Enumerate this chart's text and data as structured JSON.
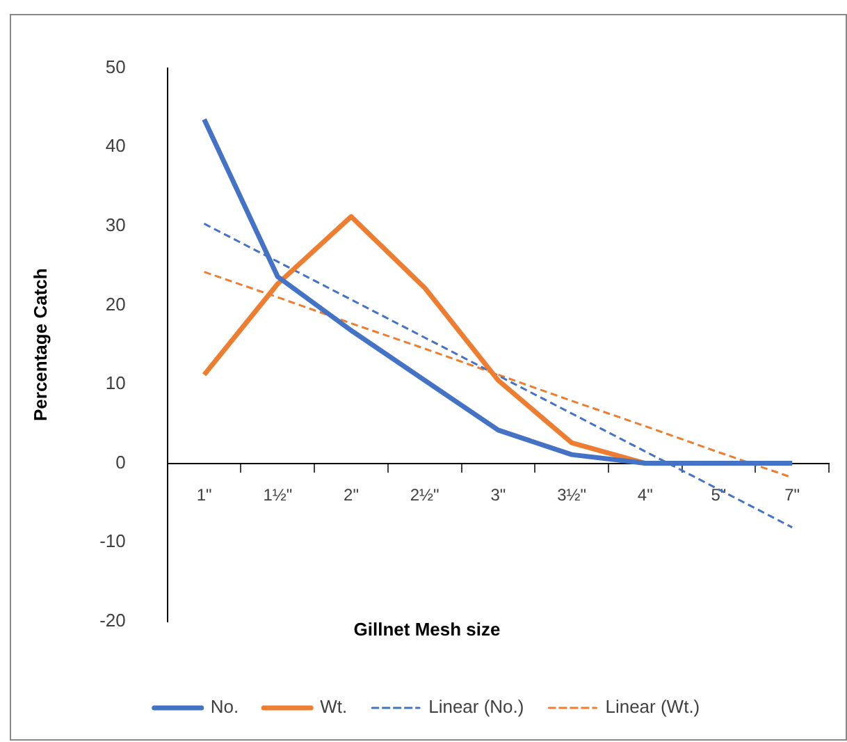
{
  "chart_data": {
    "type": "line",
    "xlabel": "Gillnet Mesh size",
    "ylabel": "Percentage Catch",
    "categories": [
      "1\"",
      "1½\"",
      "2\"",
      "2½\"",
      "3\"",
      "3½\"",
      "4\"",
      "5\"",
      "7\""
    ],
    "series": [
      {
        "name": "No.",
        "color": "#4472c4",
        "values": [
          43.5,
          23.6,
          16.8,
          10.5,
          4.2,
          1.1,
          0,
          0,
          0
        ]
      },
      {
        "name": "Wt.",
        "color": "#ed7d31",
        "values": [
          11.2,
          22.7,
          31.2,
          22.2,
          10.5,
          2.6,
          0,
          0,
          0
        ]
      },
      {
        "name": "Linear (No.)",
        "color": "#4472c4",
        "line_style": "dashed",
        "values": [
          30.3,
          25.5,
          20.7,
          15.9,
          11.1,
          6.3,
          1.5,
          -3.3,
          -8.1
        ]
      },
      {
        "name": "Linear (Wt.)",
        "color": "#ed7d31",
        "line_style": "dashed",
        "values": [
          24.2,
          21.0,
          17.7,
          14.5,
          11.2,
          7.9,
          4.7,
          1.4,
          -1.8
        ]
      }
    ],
    "ylim": [
      -20,
      50
    ],
    "yticks": [
      -20,
      -10,
      0,
      10,
      20,
      30,
      40,
      50
    ],
    "grid": false,
    "legend": "bottom",
    "marker": "none"
  }
}
